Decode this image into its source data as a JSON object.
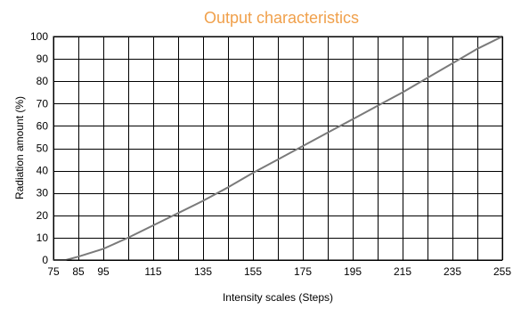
{
  "chart_data": {
    "type": "line",
    "title": "Output characteristics",
    "xlabel": "Intensity scales (Steps)",
    "ylabel": "Radiation amount (%)",
    "xlim": [
      75,
      255
    ],
    "ylim": [
      0,
      100
    ],
    "x_ticks": [
      75,
      85,
      95,
      115,
      135,
      155,
      175,
      195,
      215,
      235,
      255
    ],
    "x_grid": [
      75,
      85,
      95,
      105,
      115,
      125,
      135,
      145,
      155,
      165,
      175,
      185,
      195,
      205,
      215,
      225,
      235,
      245,
      255
    ],
    "y_ticks": [
      0,
      10,
      20,
      30,
      40,
      50,
      60,
      70,
      80,
      90,
      100
    ],
    "grid": true,
    "series": [
      {
        "x": [
          75,
          80,
          85,
          95,
          105,
          115,
          125,
          135,
          145,
          155,
          165,
          175,
          185,
          195,
          205,
          215,
          225,
          235,
          245,
          255
        ],
        "y": [
          0,
          0,
          1.5,
          5,
          10,
          15.5,
          21,
          26.5,
          32.5,
          39,
          45,
          51,
          57,
          63,
          69,
          75,
          81.5,
          88,
          94.5,
          100
        ],
        "color": "#7a7a7a"
      }
    ]
  }
}
